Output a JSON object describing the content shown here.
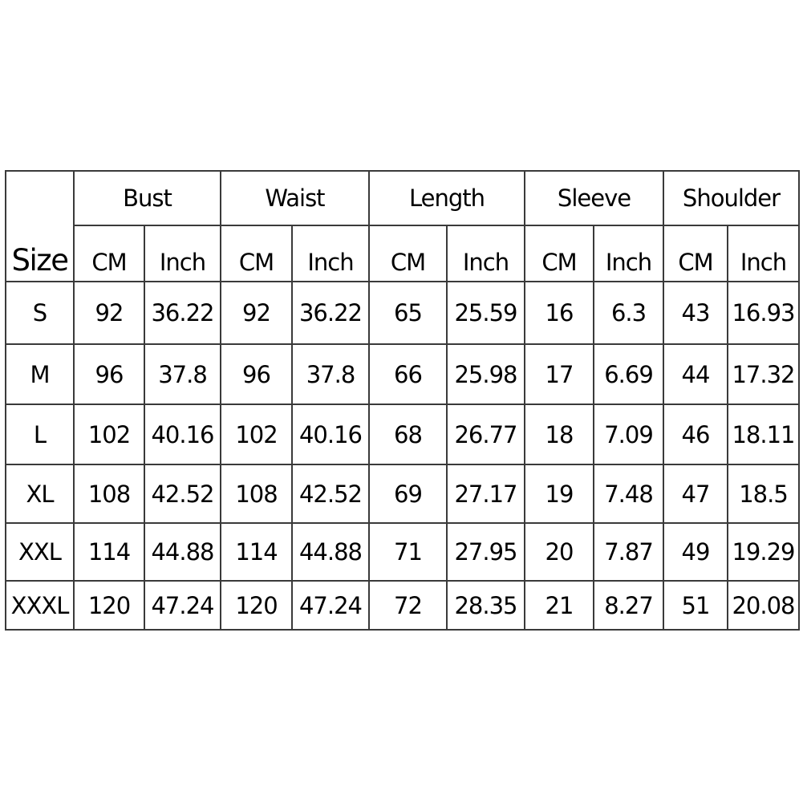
{
  "table": {
    "size_header": "Size",
    "groups": [
      "Bust",
      "Waist",
      "Length",
      "Sleeve",
      "Shoulder"
    ],
    "units": [
      "CM",
      "Inch"
    ],
    "rows": [
      {
        "size": "S",
        "values": [
          "92",
          "36.22",
          "92",
          "36.22",
          "65",
          "25.59",
          "16",
          "6.3",
          "43",
          "16.93"
        ]
      },
      {
        "size": "M",
        "values": [
          "96",
          "37.8",
          "96",
          "37.8",
          "66",
          "25.98",
          "17",
          "6.69",
          "44",
          "17.32"
        ]
      },
      {
        "size": "L",
        "values": [
          "102",
          "40.16",
          "102",
          "40.16",
          "68",
          "26.77",
          "18",
          "7.09",
          "46",
          "18.11"
        ]
      },
      {
        "size": "XL",
        "values": [
          "108",
          "42.52",
          "108",
          "42.52",
          "69",
          "27.17",
          "19",
          "7.48",
          "47",
          "18.5"
        ]
      },
      {
        "size": "XXL",
        "values": [
          "114",
          "44.88",
          "114",
          "44.88",
          "71",
          "27.95",
          "20",
          "7.87",
          "49",
          "19.29"
        ]
      },
      {
        "size": "XXXL",
        "values": [
          "120",
          "47.24",
          "120",
          "47.24",
          "72",
          "28.35",
          "21",
          "8.27",
          "51",
          "20.08"
        ]
      }
    ]
  }
}
